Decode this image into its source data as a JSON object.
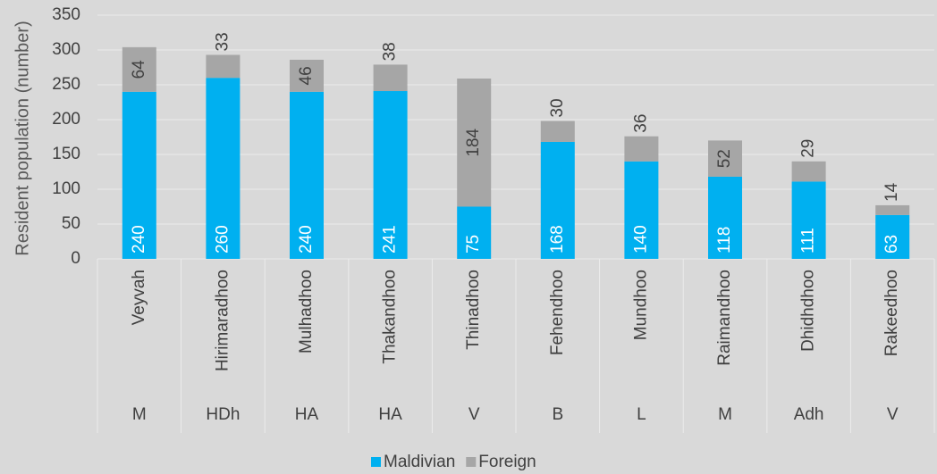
{
  "chart_data": {
    "type": "stacked_bar",
    "y_axis_label": "Resident population (number)",
    "categories": [
      "Veyvah",
      "Hirimaradhoo",
      "Mulhadhoo",
      "Thakandhoo",
      "Thinadhoo",
      "Fehendhoo",
      "Mundhoo",
      "Raimandhoo",
      "Dhidhdhoo",
      "Rakeedhoo"
    ],
    "groups": [
      "M",
      "HDh",
      "HA",
      "HA",
      "V",
      "B",
      "L",
      "M",
      "Adh",
      "V"
    ],
    "series": [
      {
        "name": "Maldivian",
        "color": "#00b0f0",
        "values": [
          240,
          260,
          240,
          241,
          75,
          168,
          140,
          118,
          111,
          63
        ]
      },
      {
        "name": "Foreign",
        "color": "#a6a6a6",
        "values": [
          64,
          33,
          46,
          38,
          184,
          30,
          36,
          52,
          29,
          14
        ]
      }
    ],
    "ylim": [
      0,
      350
    ],
    "yticks": [
      0,
      50,
      100,
      150,
      200,
      250,
      300,
      350
    ],
    "grid": true,
    "legend": "bottom"
  }
}
